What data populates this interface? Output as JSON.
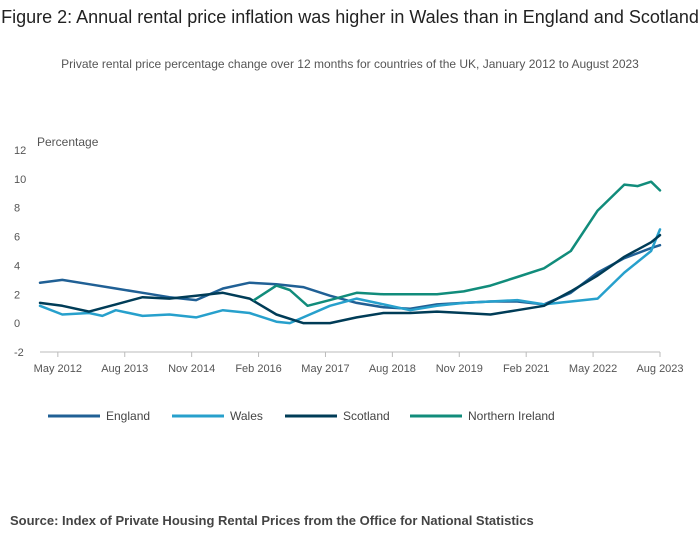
{
  "title": "Figure 2: Annual rental price inflation was higher in Wales than in England and Scotland",
  "subtitle": "Private rental price percentage change over 12 months for countries of the UK, January 2012 to August 2023",
  "source": "Source: Index of Private Housing Rental Prices from the Office for National Statistics",
  "chart_data": {
    "type": "line",
    "ylabel": "Percentage",
    "ylim": [
      -2,
      12
    ],
    "yticks": [
      "12",
      "10",
      "8",
      "6",
      "4",
      "2",
      "0",
      "-2"
    ],
    "xlim": [
      "2012-01",
      "2023-08"
    ],
    "xticks": [
      {
        "date": "2012-05",
        "label": "May 2012"
      },
      {
        "date": "2013-08",
        "label": "Aug 2013"
      },
      {
        "date": "2014-11",
        "label": "Nov 2014"
      },
      {
        "date": "2016-02",
        "label": "Feb 2016"
      },
      {
        "date": "2017-05",
        "label": "May 2017"
      },
      {
        "date": "2018-08",
        "label": "Aug 2018"
      },
      {
        "date": "2019-11",
        "label": "Nov 2019"
      },
      {
        "date": "2021-02",
        "label": "Feb 2021"
      },
      {
        "date": "2022-05",
        "label": "May 2022"
      },
      {
        "date": "2023-08",
        "label": "Aug 2023"
      }
    ],
    "grid": false,
    "legend_position": "bottom",
    "series": [
      {
        "name": "England",
        "color": "#206095",
        "points": [
          [
            "2012-01",
            2.8
          ],
          [
            "2012-06",
            3.0
          ],
          [
            "2012-12",
            2.7
          ],
          [
            "2013-06",
            2.4
          ],
          [
            "2013-12",
            2.1
          ],
          [
            "2014-06",
            1.8
          ],
          [
            "2014-12",
            1.6
          ],
          [
            "2015-06",
            2.4
          ],
          [
            "2015-12",
            2.8
          ],
          [
            "2016-06",
            2.7
          ],
          [
            "2016-12",
            2.5
          ],
          [
            "2017-06",
            1.9
          ],
          [
            "2017-12",
            1.4
          ],
          [
            "2018-06",
            1.1
          ],
          [
            "2018-12",
            1.0
          ],
          [
            "2019-06",
            1.3
          ],
          [
            "2019-12",
            1.4
          ],
          [
            "2020-06",
            1.5
          ],
          [
            "2020-12",
            1.5
          ],
          [
            "2021-06",
            1.3
          ],
          [
            "2021-12",
            2.1
          ],
          [
            "2022-06",
            3.5
          ],
          [
            "2022-12",
            4.5
          ],
          [
            "2023-06",
            5.2
          ],
          [
            "2023-08",
            5.4
          ]
        ]
      },
      {
        "name": "Wales",
        "color": "#27A0CC",
        "points": [
          [
            "2012-01",
            1.2
          ],
          [
            "2012-06",
            0.6
          ],
          [
            "2012-12",
            0.7
          ],
          [
            "2013-03",
            0.5
          ],
          [
            "2013-06",
            0.9
          ],
          [
            "2013-12",
            0.5
          ],
          [
            "2014-06",
            0.6
          ],
          [
            "2014-12",
            0.4
          ],
          [
            "2015-06",
            0.9
          ],
          [
            "2015-12",
            0.7
          ],
          [
            "2016-06",
            0.1
          ],
          [
            "2016-09",
            0.0
          ],
          [
            "2016-12",
            0.4
          ],
          [
            "2017-06",
            1.2
          ],
          [
            "2017-12",
            1.7
          ],
          [
            "2018-06",
            1.3
          ],
          [
            "2018-12",
            0.9
          ],
          [
            "2019-06",
            1.2
          ],
          [
            "2019-12",
            1.4
          ],
          [
            "2020-06",
            1.5
          ],
          [
            "2020-12",
            1.6
          ],
          [
            "2021-06",
            1.3
          ],
          [
            "2021-12",
            1.5
          ],
          [
            "2022-06",
            1.7
          ],
          [
            "2022-12",
            3.5
          ],
          [
            "2023-06",
            5.0
          ],
          [
            "2023-08",
            6.5
          ]
        ]
      },
      {
        "name": "Scotland",
        "color": "#003C57",
        "points": [
          [
            "2012-01",
            1.4
          ],
          [
            "2012-06",
            1.2
          ],
          [
            "2012-12",
            0.8
          ],
          [
            "2013-06",
            1.3
          ],
          [
            "2013-12",
            1.8
          ],
          [
            "2014-06",
            1.7
          ],
          [
            "2014-12",
            1.9
          ],
          [
            "2015-06",
            2.1
          ],
          [
            "2015-12",
            1.7
          ],
          [
            "2016-06",
            0.6
          ],
          [
            "2016-12",
            0.0
          ],
          [
            "2017-06",
            0.0
          ],
          [
            "2017-12",
            0.4
          ],
          [
            "2018-06",
            0.7
          ],
          [
            "2018-12",
            0.7
          ],
          [
            "2019-06",
            0.8
          ],
          [
            "2019-12",
            0.7
          ],
          [
            "2020-06",
            0.6
          ],
          [
            "2020-12",
            0.9
          ],
          [
            "2021-06",
            1.2
          ],
          [
            "2021-12",
            2.2
          ],
          [
            "2022-06",
            3.3
          ],
          [
            "2022-12",
            4.6
          ],
          [
            "2023-06",
            5.6
          ],
          [
            "2023-08",
            6.1
          ]
        ]
      },
      {
        "name": "Northern Ireland",
        "color": "#118C7B",
        "points": [
          [
            "2016-01",
            1.6
          ],
          [
            "2016-06",
            2.6
          ],
          [
            "2016-09",
            2.3
          ],
          [
            "2017-01",
            1.2
          ],
          [
            "2017-06",
            1.6
          ],
          [
            "2017-12",
            2.1
          ],
          [
            "2018-06",
            2.0
          ],
          [
            "2018-12",
            2.0
          ],
          [
            "2019-06",
            2.0
          ],
          [
            "2019-12",
            2.2
          ],
          [
            "2020-06",
            2.6
          ],
          [
            "2020-12",
            3.2
          ],
          [
            "2021-06",
            3.8
          ],
          [
            "2021-12",
            5.0
          ],
          [
            "2022-06",
            7.8
          ],
          [
            "2022-12",
            9.6
          ],
          [
            "2023-03",
            9.5
          ],
          [
            "2023-06",
            9.8
          ],
          [
            "2023-08",
            9.2
          ]
        ]
      }
    ]
  }
}
